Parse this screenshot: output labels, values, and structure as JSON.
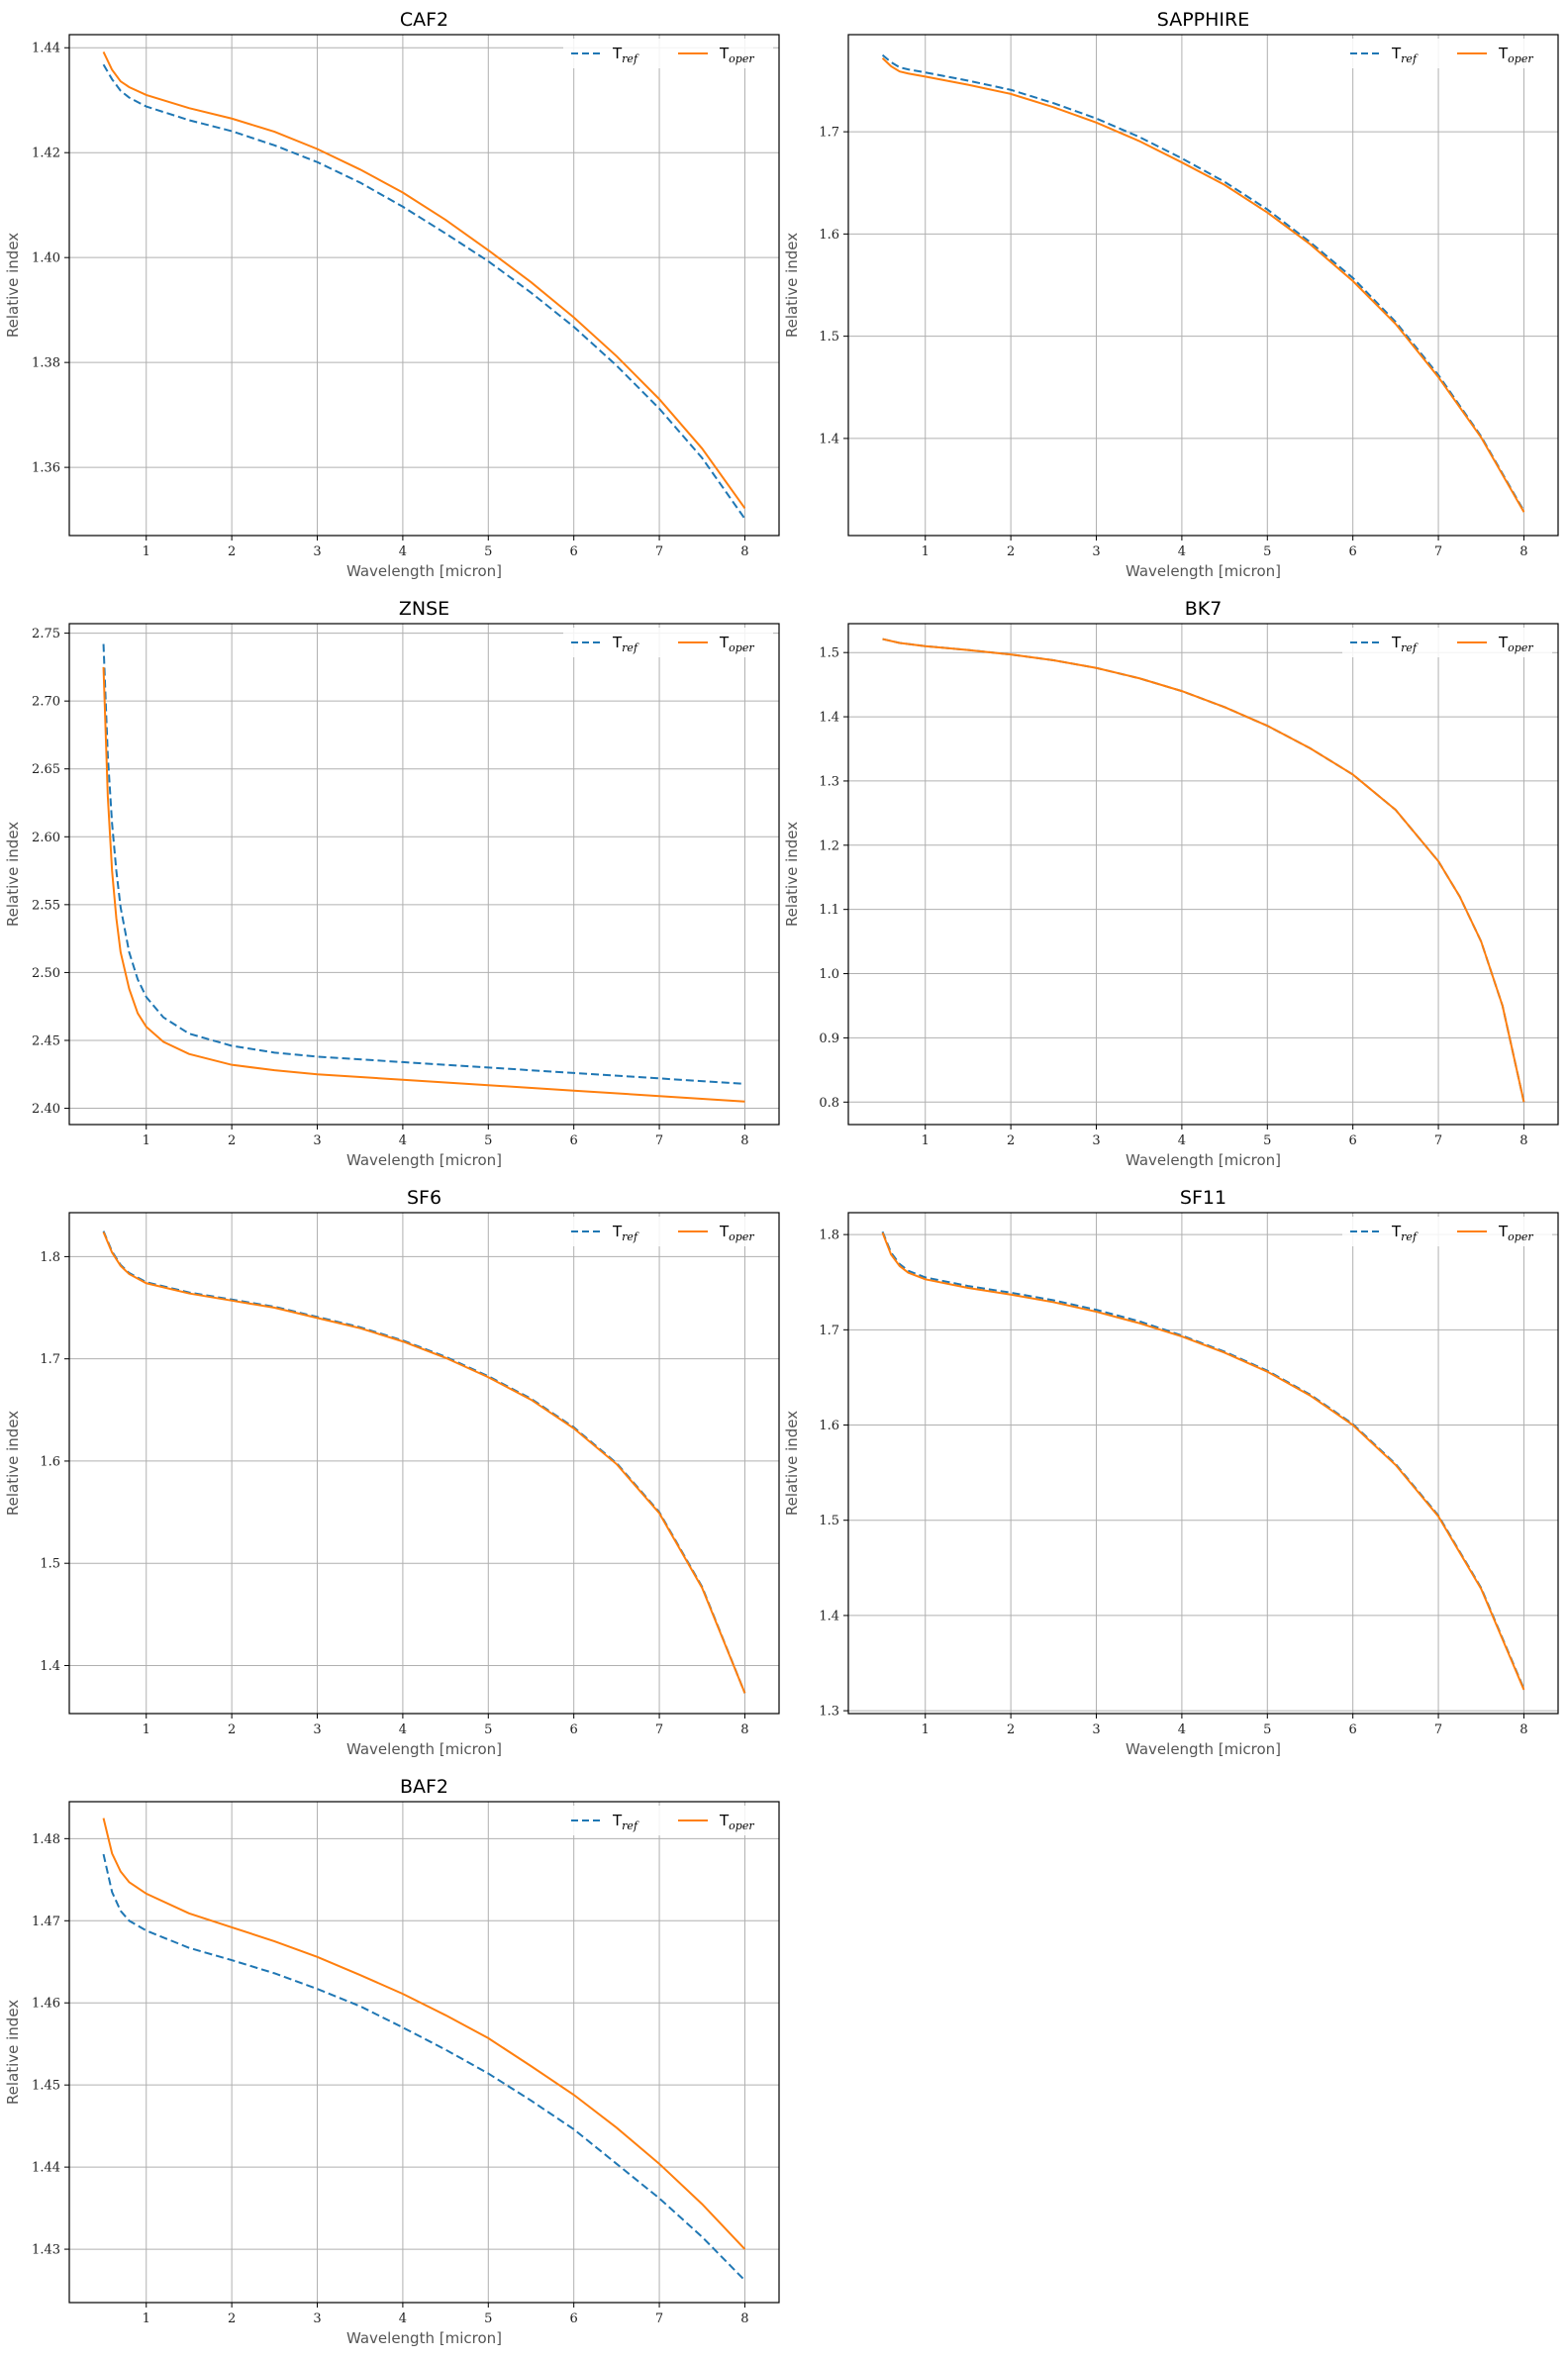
{
  "colors": {
    "ref": "#1f77b4",
    "oper": "#ff7f0e",
    "grid": "#b0b0b0"
  },
  "chart_data": [
    {
      "type": "line",
      "title": "CAF2",
      "xlabel": "Wavelength [micron]",
      "ylabel": "Relative index",
      "xlim": [
        0.1,
        8.4
      ],
      "ylim": [
        1.347,
        1.4425
      ],
      "xticks": [
        1,
        2,
        3,
        4,
        5,
        6,
        7,
        8
      ],
      "yticks": [
        1.36,
        1.38,
        1.4,
        1.42,
        1.44
      ],
      "ytick_labels": [
        "1.36",
        "1.38",
        "1.40",
        "1.42",
        "1.44"
      ],
      "grid": true,
      "legend": "upper right",
      "series": [
        {
          "name": "T",
          "subscript": "ref",
          "style": "dashed",
          "x": [
            0.5,
            0.6,
            0.7,
            0.8,
            1,
            1.5,
            2,
            2.5,
            3,
            3.5,
            4,
            4.5,
            5,
            5.5,
            6,
            6.5,
            7,
            7.5,
            8
          ],
          "y": [
            1.4368,
            1.434,
            1.4318,
            1.4305,
            1.4288,
            1.4262,
            1.4241,
            1.4214,
            1.4182,
            1.4143,
            1.4097,
            1.4046,
            1.3993,
            1.3933,
            1.3868,
            1.3794,
            1.3712,
            1.3618,
            1.3502
          ]
        },
        {
          "name": "T",
          "subscript": "oper",
          "style": "solid",
          "x": [
            0.5,
            0.6,
            0.7,
            0.8,
            1,
            1.5,
            2,
            2.5,
            3,
            3.5,
            4,
            4.5,
            5,
            5.5,
            6,
            6.5,
            7,
            7.5,
            8
          ],
          "y": [
            1.4392,
            1.4358,
            1.4336,
            1.4325,
            1.431,
            1.4285,
            1.4265,
            1.424,
            1.4207,
            1.4168,
            1.4124,
            1.4072,
            1.4014,
            1.3953,
            1.3886,
            1.3812,
            1.373,
            1.3636,
            1.3522
          ]
        }
      ]
    },
    {
      "type": "line",
      "title": "SAPPHIRE",
      "xlabel": "Wavelength [micron]",
      "ylabel": "Relative index",
      "xlim": [
        0.1,
        8.4
      ],
      "ylim": [
        1.305,
        1.795
      ],
      "xticks": [
        1,
        2,
        3,
        4,
        5,
        6,
        7,
        8
      ],
      "yticks": [
        1.4,
        1.5,
        1.6,
        1.7
      ],
      "ytick_labels": [
        "1.4",
        "1.5",
        "1.6",
        "1.7"
      ],
      "grid": true,
      "legend": "upper right",
      "series": [
        {
          "name": "T",
          "subscript": "ref",
          "style": "dashed",
          "x": [
            0.5,
            0.6,
            0.7,
            0.8,
            1,
            1.5,
            2,
            2.5,
            3,
            3.5,
            4,
            4.5,
            5,
            5.5,
            6,
            6.5,
            7,
            7.5,
            8
          ],
          "y": [
            1.775,
            1.768,
            1.763,
            1.761,
            1.758,
            1.75,
            1.741,
            1.728,
            1.713,
            1.695,
            1.674,
            1.651,
            1.624,
            1.592,
            1.557,
            1.514,
            1.462,
            1.402,
            1.329
          ]
        },
        {
          "name": "T",
          "subscript": "oper",
          "style": "solid",
          "x": [
            0.5,
            0.6,
            0.7,
            0.8,
            1,
            1.5,
            2,
            2.5,
            3,
            3.5,
            4,
            4.5,
            5,
            5.5,
            6,
            6.5,
            7,
            7.5,
            8
          ],
          "y": [
            1.772,
            1.764,
            1.759,
            1.757,
            1.754,
            1.746,
            1.737,
            1.724,
            1.709,
            1.691,
            1.67,
            1.648,
            1.621,
            1.59,
            1.554,
            1.512,
            1.46,
            1.401,
            1.328
          ]
        }
      ]
    },
    {
      "type": "line",
      "title": "ZNSE",
      "xlabel": "Wavelength [micron]",
      "ylabel": "Relative index",
      "xlim": [
        0.1,
        8.4
      ],
      "ylim": [
        2.388,
        2.757
      ],
      "xticks": [
        1,
        2,
        3,
        4,
        5,
        6,
        7,
        8
      ],
      "yticks": [
        2.4,
        2.45,
        2.5,
        2.55,
        2.6,
        2.65,
        2.7,
        2.75
      ],
      "ytick_labels": [
        "2.40",
        "2.45",
        "2.50",
        "2.55",
        "2.60",
        "2.65",
        "2.70",
        "2.75"
      ],
      "grid": true,
      "legend": "upper right",
      "series": [
        {
          "name": "T",
          "subscript": "ref",
          "style": "dashed",
          "x": [
            0.5,
            0.55,
            0.6,
            0.65,
            0.7,
            0.8,
            0.9,
            1,
            1.2,
            1.5,
            2,
            2.5,
            3,
            4,
            5,
            6,
            7,
            8
          ],
          "y": [
            2.742,
            2.66,
            2.61,
            2.575,
            2.548,
            2.515,
            2.495,
            2.482,
            2.467,
            2.455,
            2.446,
            2.441,
            2.438,
            2.434,
            2.43,
            2.426,
            2.422,
            2.418
          ]
        },
        {
          "name": "T",
          "subscript": "oper",
          "style": "solid",
          "x": [
            0.5,
            0.55,
            0.6,
            0.65,
            0.7,
            0.8,
            0.9,
            1,
            1.2,
            1.5,
            2,
            2.5,
            3,
            4,
            5,
            6,
            7,
            8
          ],
          "y": [
            2.725,
            2.63,
            2.575,
            2.54,
            2.515,
            2.488,
            2.47,
            2.46,
            2.449,
            2.44,
            2.432,
            2.428,
            2.425,
            2.421,
            2.417,
            2.413,
            2.409,
            2.405
          ]
        }
      ]
    },
    {
      "type": "line",
      "title": "BK7",
      "xlabel": "Wavelength [micron]",
      "ylabel": "Relative index",
      "xlim": [
        0.1,
        8.4
      ],
      "ylim": [
        0.765,
        1.545
      ],
      "xticks": [
        1,
        2,
        3,
        4,
        5,
        6,
        7,
        8
      ],
      "yticks": [
        0.8,
        0.9,
        1.0,
        1.1,
        1.2,
        1.3,
        1.4,
        1.5
      ],
      "ytick_labels": [
        "0.8",
        "0.9",
        "1.0",
        "1.1",
        "1.2",
        "1.3",
        "1.4",
        "1.5"
      ],
      "grid": true,
      "legend": "upper right",
      "series": [
        {
          "name": "T",
          "subscript": "ref",
          "style": "dashed",
          "x": [
            0.5,
            0.7,
            1,
            1.5,
            2,
            2.5,
            3,
            3.5,
            4,
            4.5,
            5,
            5.5,
            6,
            6.5,
            7,
            7.25,
            7.5,
            7.75,
            8
          ],
          "y": [
            1.521,
            1.515,
            1.51,
            1.504,
            1.497,
            1.488,
            1.476,
            1.46,
            1.44,
            1.415,
            1.386,
            1.351,
            1.31,
            1.255,
            1.175,
            1.12,
            1.05,
            0.95,
            0.8
          ]
        },
        {
          "name": "T",
          "subscript": "oper",
          "style": "solid",
          "x": [
            0.5,
            0.7,
            1,
            1.5,
            2,
            2.5,
            3,
            3.5,
            4,
            4.5,
            5,
            5.5,
            6,
            6.5,
            7,
            7.25,
            7.5,
            7.75,
            8
          ],
          "y": [
            1.521,
            1.515,
            1.51,
            1.504,
            1.497,
            1.488,
            1.476,
            1.46,
            1.44,
            1.415,
            1.386,
            1.351,
            1.31,
            1.255,
            1.175,
            1.12,
            1.05,
            0.95,
            0.8
          ]
        }
      ]
    },
    {
      "type": "line",
      "title": "SF6",
      "xlabel": "Wavelength [micron]",
      "ylabel": "Relative index",
      "xlim": [
        0.1,
        8.4
      ],
      "ylim": [
        1.353,
        1.843
      ],
      "xticks": [
        1,
        2,
        3,
        4,
        5,
        6,
        7,
        8
      ],
      "yticks": [
        1.4,
        1.5,
        1.6,
        1.7,
        1.8
      ],
      "ytick_labels": [
        "1.4",
        "1.5",
        "1.6",
        "1.7",
        "1.8"
      ],
      "grid": true,
      "legend": "upper right",
      "series": [
        {
          "name": "T",
          "subscript": "ref",
          "style": "dashed",
          "x": [
            0.5,
            0.6,
            0.7,
            0.8,
            1,
            1.5,
            2,
            2.5,
            3,
            3.5,
            4,
            4.5,
            5,
            5.5,
            6,
            6.5,
            7,
            7.5,
            8
          ],
          "y": [
            1.825,
            1.805,
            1.792,
            1.784,
            1.775,
            1.765,
            1.758,
            1.751,
            1.741,
            1.731,
            1.718,
            1.702,
            1.683,
            1.661,
            1.633,
            1.598,
            1.55,
            1.477,
            1.373
          ]
        },
        {
          "name": "T",
          "subscript": "oper",
          "style": "solid",
          "x": [
            0.5,
            0.6,
            0.7,
            0.8,
            1,
            1.5,
            2,
            2.5,
            3,
            3.5,
            4,
            4.5,
            5,
            5.5,
            6,
            6.5,
            7,
            7.5,
            8
          ],
          "y": [
            1.824,
            1.804,
            1.791,
            1.783,
            1.774,
            1.764,
            1.757,
            1.75,
            1.74,
            1.73,
            1.717,
            1.701,
            1.682,
            1.66,
            1.632,
            1.597,
            1.549,
            1.476,
            1.373
          ]
        }
      ]
    },
    {
      "type": "line",
      "title": "SF11",
      "xlabel": "Wavelength [micron]",
      "ylabel": "Relative index",
      "xlim": [
        0.1,
        8.4
      ],
      "ylim": [
        1.297,
        1.823
      ],
      "xticks": [
        1,
        2,
        3,
        4,
        5,
        6,
        7,
        8
      ],
      "yticks": [
        1.3,
        1.4,
        1.5,
        1.6,
        1.7,
        1.8
      ],
      "ytick_labels": [
        "1.3",
        "1.4",
        "1.5",
        "1.6",
        "1.7",
        "1.8"
      ],
      "grid": true,
      "legend": "upper right",
      "series": [
        {
          "name": "T",
          "subscript": "ref",
          "style": "dashed",
          "x": [
            0.5,
            0.6,
            0.7,
            0.8,
            1,
            1.5,
            2,
            2.5,
            3,
            3.5,
            4,
            4.5,
            5,
            5.5,
            6,
            6.5,
            7,
            7.5,
            8
          ],
          "y": [
            1.803,
            1.781,
            1.769,
            1.762,
            1.755,
            1.746,
            1.739,
            1.731,
            1.721,
            1.709,
            1.694,
            1.677,
            1.657,
            1.632,
            1.601,
            1.559,
            1.505,
            1.429,
            1.323
          ]
        },
        {
          "name": "T",
          "subscript": "oper",
          "style": "solid",
          "x": [
            0.5,
            0.6,
            0.7,
            0.8,
            1,
            1.5,
            2,
            2.5,
            3,
            3.5,
            4,
            4.5,
            5,
            5.5,
            6,
            6.5,
            7,
            7.5,
            8
          ],
          "y": [
            1.802,
            1.779,
            1.767,
            1.76,
            1.753,
            1.744,
            1.737,
            1.729,
            1.719,
            1.707,
            1.693,
            1.676,
            1.656,
            1.631,
            1.6,
            1.558,
            1.504,
            1.428,
            1.322
          ]
        }
      ]
    },
    {
      "type": "line",
      "title": "BAF2",
      "xlabel": "Wavelength [micron]",
      "ylabel": "Relative index",
      "xlim": [
        0.1,
        8.4
      ],
      "ylim": [
        1.4235,
        1.4845
      ],
      "xticks": [
        1,
        2,
        3,
        4,
        5,
        6,
        7,
        8
      ],
      "yticks": [
        1.43,
        1.44,
        1.45,
        1.46,
        1.47,
        1.48
      ],
      "ytick_labels": [
        "1.43",
        "1.44",
        "1.45",
        "1.46",
        "1.47",
        "1.48"
      ],
      "grid": true,
      "legend": "upper right",
      "series": [
        {
          "name": "T",
          "subscript": "ref",
          "style": "dashed",
          "x": [
            0.5,
            0.6,
            0.7,
            0.8,
            1,
            1.5,
            2,
            2.5,
            3,
            3.5,
            4,
            4.5,
            5,
            5.5,
            6,
            6.5,
            7,
            7.5,
            8
          ],
          "y": [
            1.4781,
            1.4735,
            1.4712,
            1.47,
            1.4688,
            1.4667,
            1.4652,
            1.4636,
            1.4617,
            1.4596,
            1.457,
            1.4543,
            1.4514,
            1.4481,
            1.4446,
            1.4404,
            1.4362,
            1.4315,
            1.4262
          ]
        },
        {
          "name": "T",
          "subscript": "oper",
          "style": "solid",
          "x": [
            0.5,
            0.6,
            0.7,
            0.8,
            1,
            1.5,
            2,
            2.5,
            3,
            3.5,
            4,
            4.5,
            5,
            5.5,
            6,
            6.5,
            7,
            7.5,
            8
          ],
          "y": [
            1.4825,
            1.4782,
            1.476,
            1.4747,
            1.4733,
            1.4709,
            1.4692,
            1.4675,
            1.4656,
            1.4634,
            1.4611,
            1.4585,
            1.4557,
            1.4523,
            1.4488,
            1.4448,
            1.4404,
            1.4355,
            1.43
          ]
        }
      ]
    }
  ]
}
